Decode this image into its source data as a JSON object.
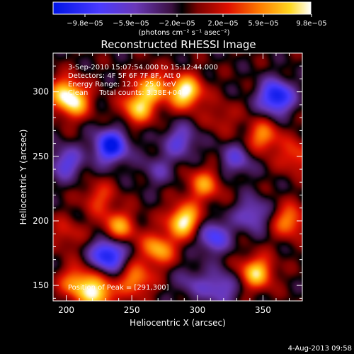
{
  "chart_data": {
    "type": "heatmap",
    "title": "Reconstructed RHESSI Image",
    "xlabel": "Heliocentric X (arcsec)",
    "ylabel": "Heliocentric Y (arcsec)",
    "xlim": [
      190,
      380
    ],
    "ylim": [
      138,
      330
    ],
    "x_ticks": [
      200,
      250,
      300,
      350
    ],
    "y_ticks": [
      150,
      200,
      250,
      300
    ],
    "colorbar": {
      "range": [
        -9.8e-05,
        9.8e-05
      ],
      "tick_labels": [
        "−9.8e−05",
        "−5.9e−05",
        "−2.0e−05",
        "2.0e−05",
        "5.9e−05",
        "9.8e−05"
      ],
      "unit_text": "(photons cm⁻² s⁻¹ asec⁻²)"
    },
    "annotations": [
      "3-Sep-2010 15:07:54.000 to 15:12:44.000",
      "Detectors: 4F 5F 6F 7F 8F, Att 0",
      "Energy Range: 12.0 - 25.0 keV",
      "Clean     Total counts: 3.38E+04"
    ],
    "peak_label": "Position of Peak = [291,300]",
    "footer_date": "4-Aug-2013 09:58",
    "blobs": [
      {
        "x": 291,
        "y": 300,
        "v": 9.8e-05
      },
      {
        "x": 290,
        "y": 200,
        "v": 9.5e-05
      },
      {
        "x": 255,
        "y": 288,
        "v": 7.5e-05
      },
      {
        "x": 265,
        "y": 304,
        "v": 6.5e-05
      },
      {
        "x": 206,
        "y": 292,
        "v": 7.2e-05
      },
      {
        "x": 198,
        "y": 300,
        "v": 5.5e-05
      },
      {
        "x": 234,
        "y": 258,
        "v": -9.8e-05
      },
      {
        "x": 350,
        "y": 265,
        "v": 6e-05
      },
      {
        "x": 345,
        "y": 160,
        "v": 8e-05
      },
      {
        "x": 224,
        "y": 144,
        "v": 8.5e-05
      },
      {
        "x": 208,
        "y": 152,
        "v": 6.5e-05
      },
      {
        "x": 253,
        "y": 154,
        "v": 6e-05
      },
      {
        "x": 270,
        "y": 178,
        "v": 7e-05
      },
      {
        "x": 240,
        "y": 195,
        "v": 6.5e-05
      },
      {
        "x": 305,
        "y": 228,
        "v": 6e-05
      },
      {
        "x": 370,
        "y": 200,
        "v": 6e-05
      },
      {
        "x": 360,
        "y": 296,
        "v": -9.8e-05
      },
      {
        "x": 232,
        "y": 174,
        "v": -9.5e-05
      },
      {
        "x": 312,
        "y": 188,
        "v": -6.5e-05
      },
      {
        "x": 200,
        "y": 245,
        "v": -5.5e-05
      },
      {
        "x": 287,
        "y": 262,
        "v": -5e-05
      },
      {
        "x": 330,
        "y": 248,
        "v": -4.5e-05
      },
      {
        "x": 342,
        "y": 205,
        "v": -5e-05
      },
      {
        "x": 318,
        "y": 148,
        "v": -5e-05
      },
      {
        "x": 225,
        "y": 218,
        "v": 4e-05
      },
      {
        "x": 318,
        "y": 280,
        "v": 2.5e-05
      },
      {
        "x": 375,
        "y": 250,
        "v": 4.5e-05
      },
      {
        "x": 270,
        "y": 240,
        "v": -3e-05
      },
      {
        "x": 200,
        "y": 190,
        "v": 3e-05
      },
      {
        "x": 296,
        "y": 152,
        "v": -3e-05
      }
    ]
  }
}
